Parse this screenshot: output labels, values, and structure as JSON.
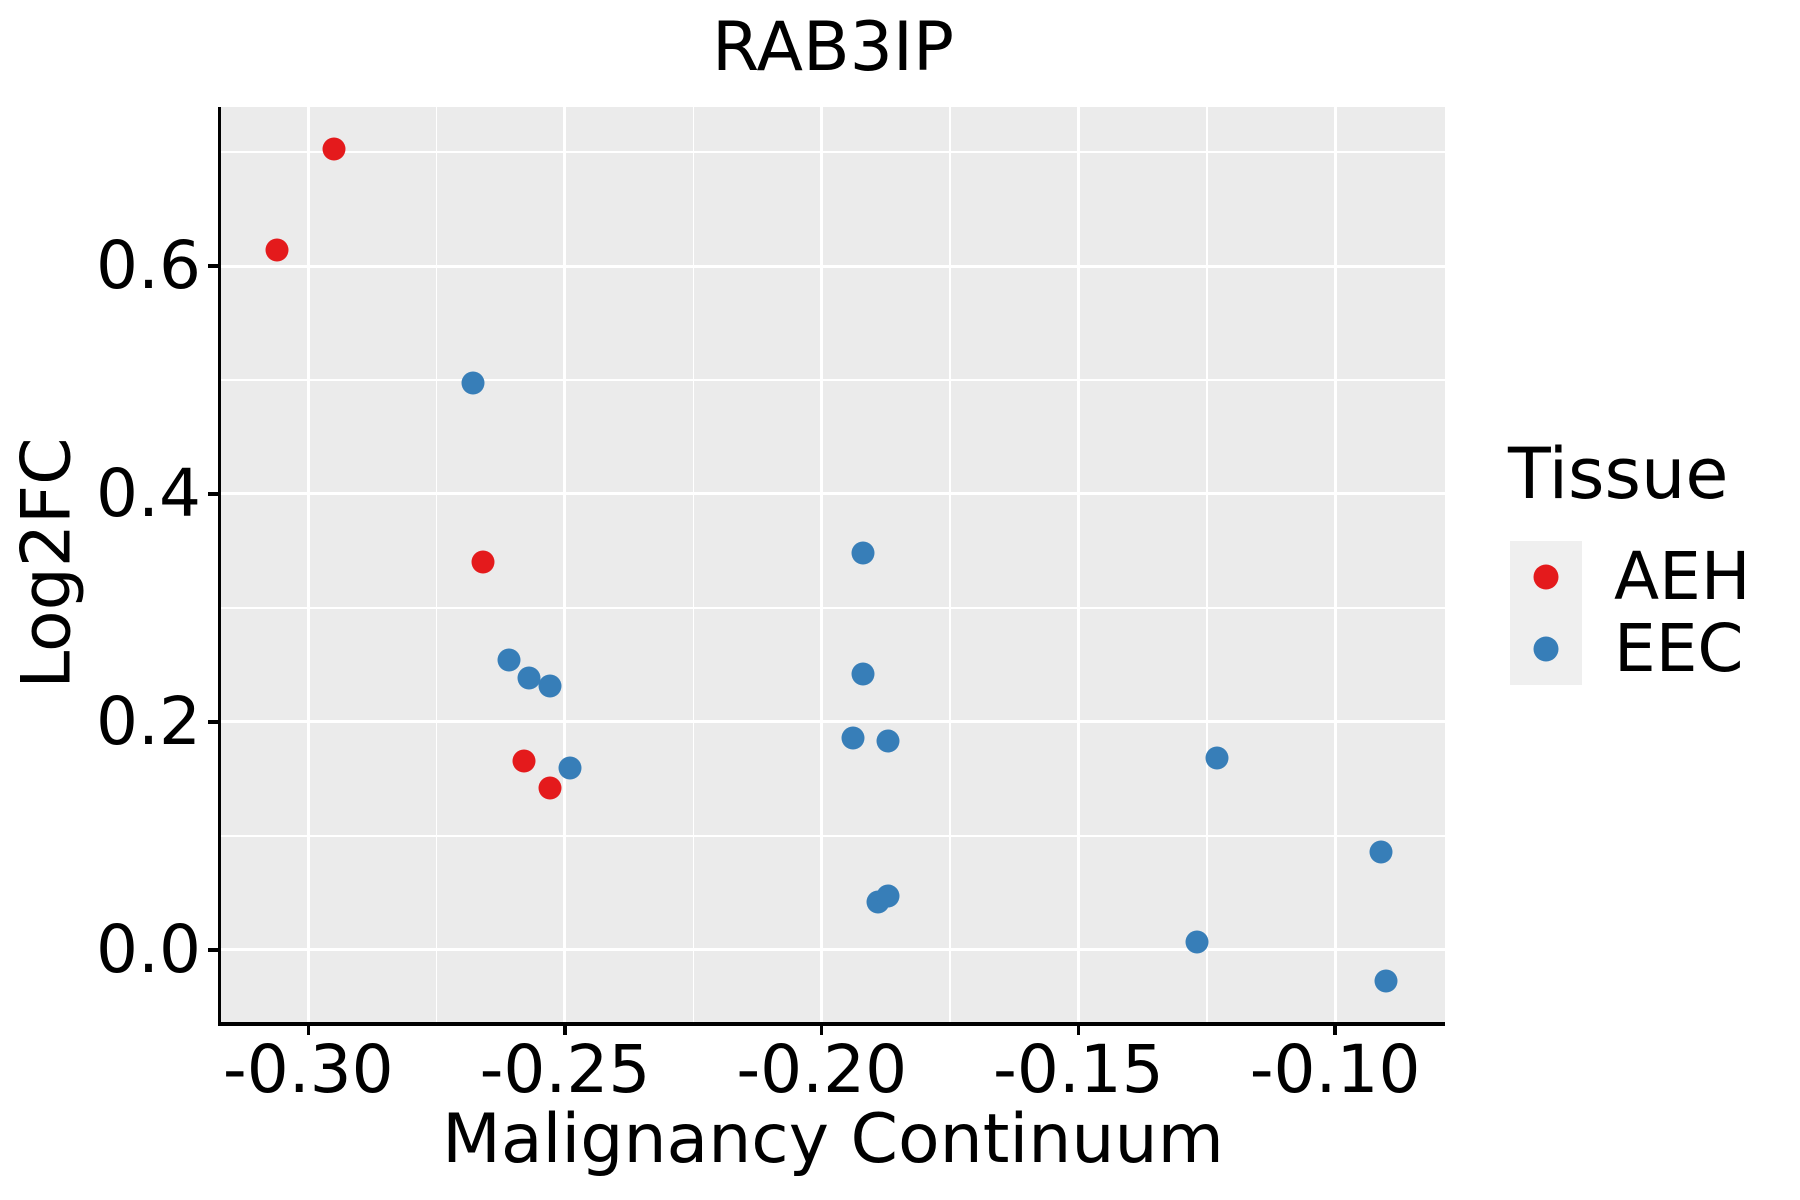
{
  "title": "RAB3IP",
  "axes": {
    "x_title": "Malignancy Continuum",
    "y_title": "Log2FC"
  },
  "legend": {
    "title": "Tissue",
    "entries": [
      {
        "label": "AEH",
        "color": "#E41A1C"
      },
      {
        "label": "EEC",
        "color": "#377EB8"
      }
    ]
  },
  "colors": {
    "panel_background": "#EBEBEB",
    "gridline": "#FFFFFF",
    "axis": "#000000",
    "aeh_red": "#E41A1C",
    "eec_blue": "#377EB8",
    "legend_key_background": "#EFEFEF"
  },
  "chart_data": {
    "type": "scatter",
    "title": "RAB3IP",
    "xlabel": "Malignancy Continuum",
    "ylabel": "Log2FC",
    "xlim": [
      -0.317,
      -0.0786
    ],
    "ylim": [
      -0.0632,
      0.7395
    ],
    "grid": true,
    "legend_position": "right",
    "x_ticks": [
      {
        "v": -0.3,
        "label": "-0.30"
      },
      {
        "v": -0.25,
        "label": "-0.25"
      },
      {
        "v": -0.2,
        "label": "-0.20"
      },
      {
        "v": -0.15,
        "label": "-0.15"
      },
      {
        "v": -0.1,
        "label": "-0.10"
      }
    ],
    "y_ticks": [
      {
        "v": 0.0,
        "label": "0.0"
      },
      {
        "v": 0.2,
        "label": "0.2"
      },
      {
        "v": 0.4,
        "label": "0.4"
      },
      {
        "v": 0.6,
        "label": "0.6"
      }
    ],
    "x_minor_ticks": [
      -0.275,
      -0.225,
      -0.175,
      -0.125
    ],
    "y_minor_ticks": [
      0.1,
      0.3,
      0.5,
      0.7
    ],
    "series": [
      {
        "name": "AEH",
        "color": "#E41A1C",
        "points": [
          [
            -0.306,
            0.614
          ],
          [
            -0.295,
            0.703
          ],
          [
            -0.266,
            0.34
          ],
          [
            -0.258,
            0.166
          ],
          [
            -0.253,
            0.142
          ]
        ]
      },
      {
        "name": "EEC",
        "color": "#377EB8",
        "points": [
          [
            -0.268,
            0.497
          ],
          [
            -0.261,
            0.254
          ],
          [
            -0.257,
            0.239
          ],
          [
            -0.253,
            0.232
          ],
          [
            -0.249,
            0.16
          ],
          [
            -0.194,
            0.186
          ],
          [
            -0.192,
            0.348
          ],
          [
            -0.192,
            0.242
          ],
          [
            -0.189,
            0.042
          ],
          [
            -0.187,
            0.183
          ],
          [
            -0.187,
            0.047
          ],
          [
            -0.123,
            0.168
          ],
          [
            -0.127,
            0.007
          ],
          [
            -0.091,
            0.086
          ],
          [
            -0.09,
            -0.027
          ]
        ]
      }
    ]
  }
}
